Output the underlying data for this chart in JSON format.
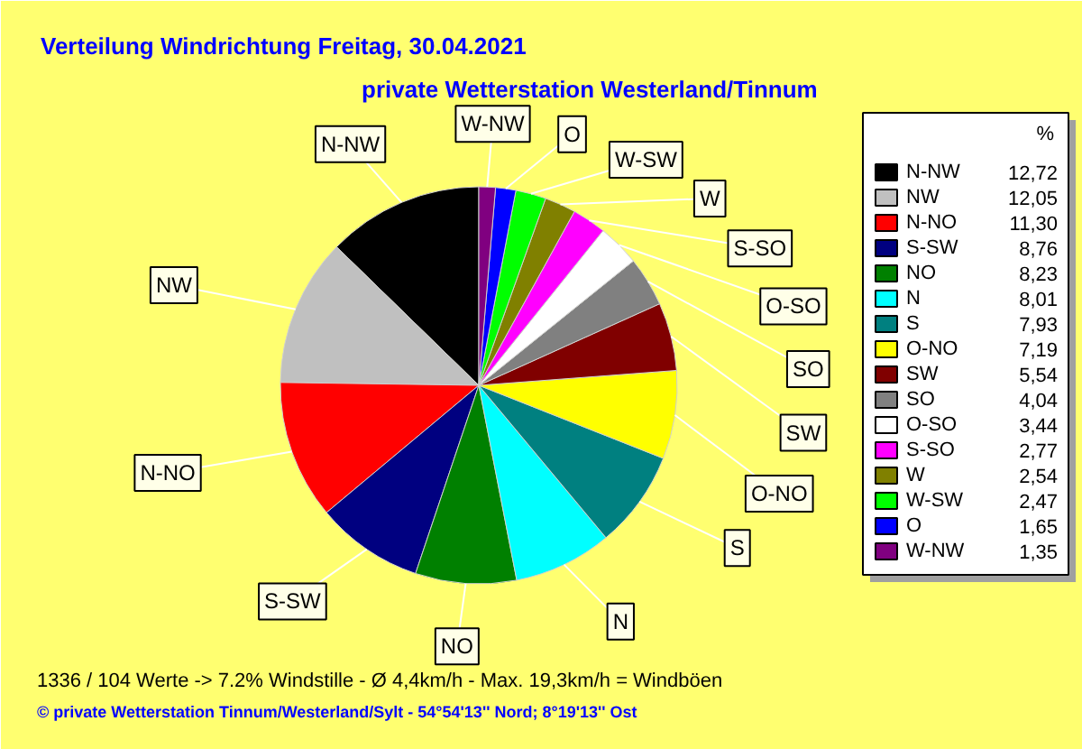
{
  "chart_data": {
    "type": "pie",
    "title": "Verteilung Windrichtung   Freitag, 30.04.2021",
    "subtitle": "private Wetterstation Westerland/Tinnum",
    "categories": [
      "N-NW",
      "NW",
      "N-NO",
      "S-SW",
      "NO",
      "N",
      "S",
      "O-NO",
      "SW",
      "SO",
      "O-SO",
      "S-SO",
      "W",
      "W-SW",
      "O",
      "W-NW"
    ],
    "values": [
      12.72,
      12.05,
      11.3,
      8.76,
      8.23,
      8.01,
      7.93,
      7.19,
      5.54,
      4.04,
      3.44,
      2.77,
      2.54,
      2.47,
      1.65,
      1.35
    ],
    "value_labels": [
      "12,72",
      "12,05",
      "11,30",
      "8,76",
      "8,23",
      "8,01",
      "7,93",
      "7,19",
      "5,54",
      "4,04",
      "3,44",
      "2,77",
      "2,54",
      "2,47",
      "1,65",
      "1,35"
    ],
    "colors": [
      "#000000",
      "#c0c0c0",
      "#ff0000",
      "#000080",
      "#008000",
      "#00ffff",
      "#008080",
      "#ffff00",
      "#800000",
      "#808080",
      "#ffffff",
      "#ff00ff",
      "#808000",
      "#00ff00",
      "#0000ff",
      "#800080"
    ],
    "legend_title": "%",
    "legend": "right",
    "annotations": [
      "1336 / 104 Werte  -> 7.2% Windstille   -   Ø 4,4km/h  -  Max. 19,3km/h = Windböen",
      "© private Wetterstation Tinnum/Westerland/Sylt  -  54°54'13'' Nord; 8°19'13'' Ost"
    ]
  }
}
